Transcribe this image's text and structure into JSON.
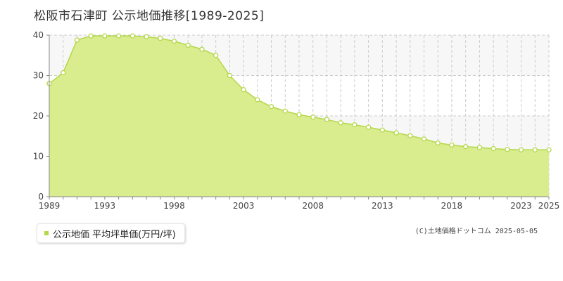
{
  "title": "松阪市石津町 公示地価推移[1989-2025]",
  "copyright": "(C)土地価格ドットコム 2025-05-05",
  "colors": {
    "area_fill": "#d9ec8e",
    "line": "#b4d84a",
    "marker_fill": "#ffffff",
    "band": "#f7f7f7",
    "grid": "#cccccc"
  },
  "chart_data": {
    "type": "area",
    "title": "松阪市石津町 公示地価推移[1989-2025]",
    "xlabel": "",
    "ylabel": "",
    "x_range": [
      1989,
      2025
    ],
    "ylim": [
      0,
      40
    ],
    "y_ticks": [
      0,
      10,
      20,
      30,
      40
    ],
    "x_ticks": [
      1989,
      1993,
      1998,
      2003,
      2008,
      2013,
      2018,
      2023,
      2025
    ],
    "grid": true,
    "legend_position": "bottom-left",
    "series": [
      {
        "name": "公示地価 平均坪単価(万円/坪)",
        "x": [
          1989,
          1990,
          1991,
          1992,
          1993,
          1994,
          1995,
          1996,
          1997,
          1998,
          1999,
          2000,
          2001,
          2002,
          2003,
          2004,
          2005,
          2006,
          2007,
          2008,
          2009,
          2010,
          2011,
          2012,
          2013,
          2014,
          2015,
          2016,
          2017,
          2018,
          2019,
          2020,
          2021,
          2022,
          2023,
          2024,
          2025
        ],
        "values": [
          28.0,
          30.7,
          38.8,
          39.8,
          39.8,
          39.8,
          39.8,
          39.6,
          39.2,
          38.5,
          37.5,
          36.5,
          35.0,
          30.0,
          26.5,
          24.0,
          22.3,
          21.2,
          20.3,
          19.7,
          19.1,
          18.3,
          17.8,
          17.2,
          16.5,
          15.8,
          15.1,
          14.3,
          13.3,
          12.8,
          12.4,
          12.2,
          11.9,
          11.7,
          11.6,
          11.6,
          11.6
        ]
      }
    ]
  }
}
